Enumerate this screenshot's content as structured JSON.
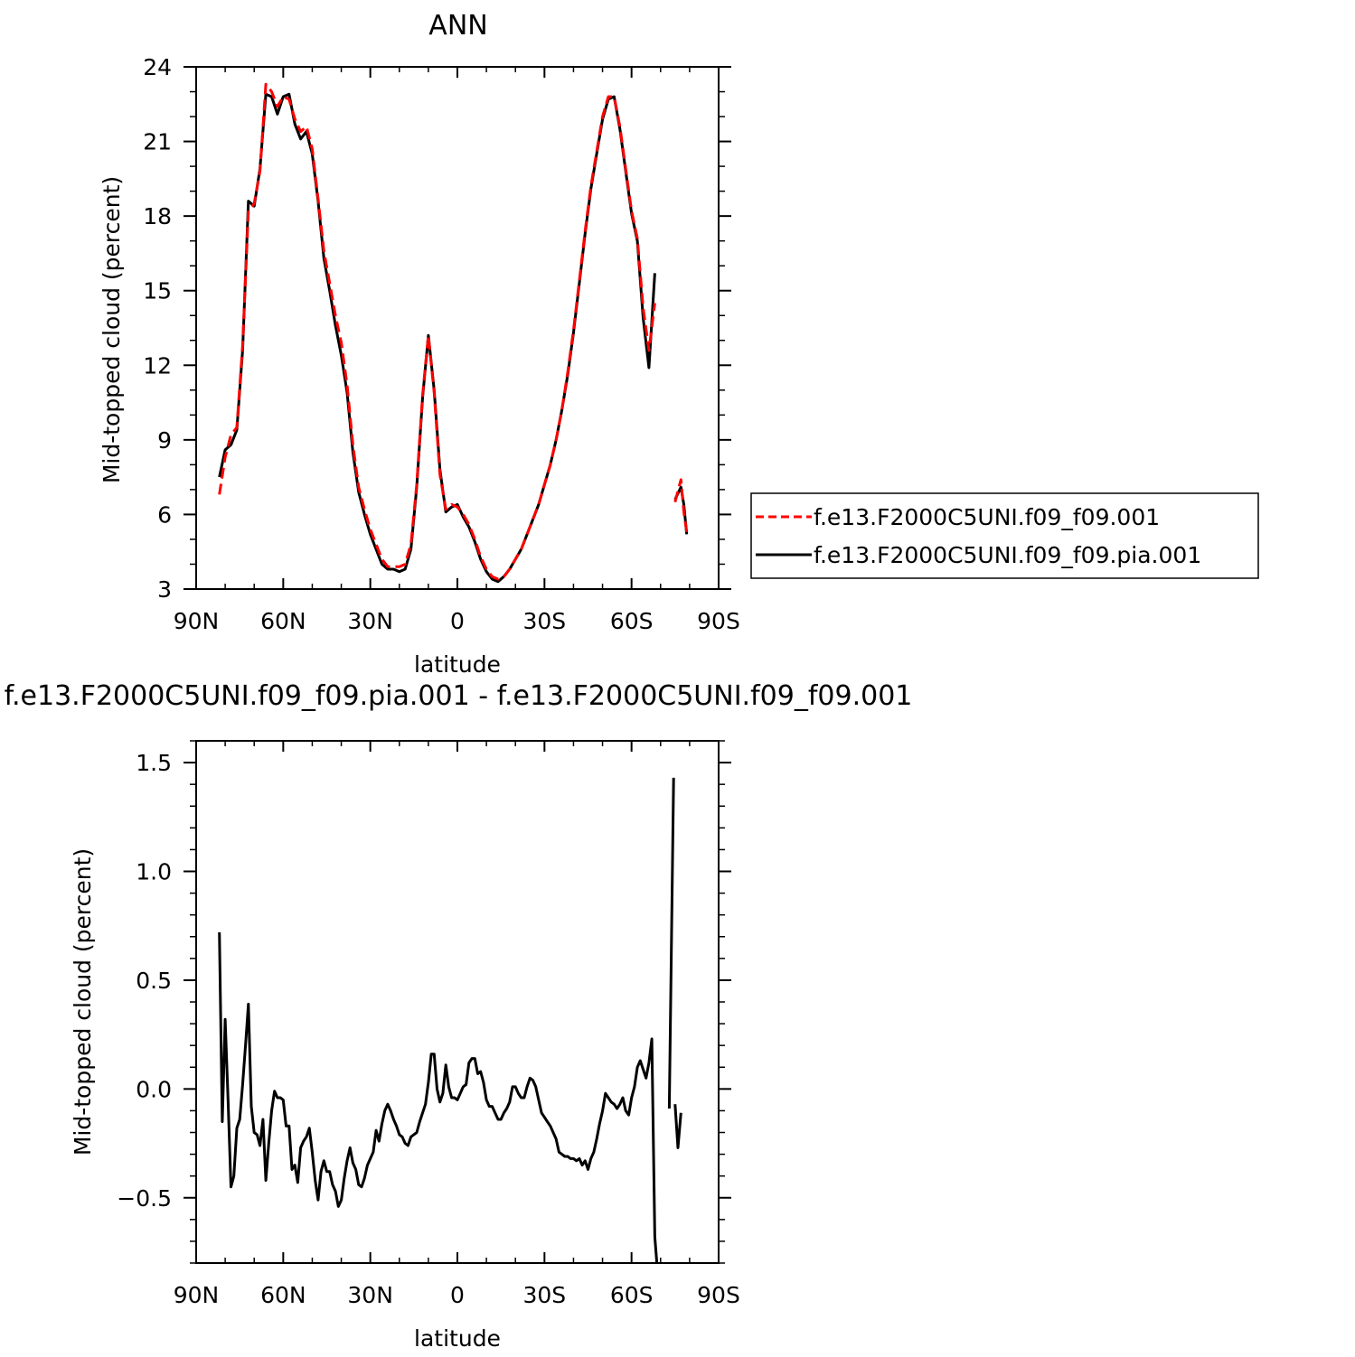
{
  "chart_data": [
    {
      "type": "line",
      "title": "ANN",
      "xlabel": "latitude",
      "ylabel": "Mid-topped cloud (percent)",
      "xlim": [
        90,
        -90
      ],
      "ylim": [
        3,
        24
      ],
      "x_ticks": [
        {
          "value": 90,
          "label": "90N"
        },
        {
          "value": 60,
          "label": "60N"
        },
        {
          "value": 30,
          "label": "30N"
        },
        {
          "value": 0,
          "label": "0"
        },
        {
          "value": -30,
          "label": "30S"
        },
        {
          "value": -60,
          "label": "60S"
        },
        {
          "value": -90,
          "label": "90S"
        }
      ],
      "y_ticks": [
        {
          "value": 3,
          "label": "3"
        },
        {
          "value": 6,
          "label": "6"
        },
        {
          "value": 9,
          "label": "9"
        },
        {
          "value": 12,
          "label": "12"
        },
        {
          "value": 15,
          "label": "15"
        },
        {
          "value": 18,
          "label": "18"
        },
        {
          "value": 21,
          "label": "21"
        },
        {
          "value": 24,
          "label": "24"
        }
      ],
      "legend_position": "right",
      "series": [
        {
          "name": "f.e13.F2000C5UNI.f09_f09.001",
          "color": "#ff0000",
          "dash": true,
          "x": [
            82,
            80,
            78,
            76,
            74,
            72,
            70,
            68,
            66,
            64,
            62,
            60,
            58,
            56,
            54,
            52,
            50,
            48,
            46,
            44,
            42,
            40,
            38,
            36,
            34,
            32,
            30,
            28,
            26,
            24,
            22,
            20,
            18,
            16,
            14,
            12,
            10,
            8,
            6,
            4,
            2,
            0,
            -2,
            -4,
            -6,
            -8,
            -10,
            -12,
            -14,
            -16,
            -18,
            -20,
            -22,
            -24,
            -26,
            -28,
            -30,
            -32,
            -34,
            -36,
            -38,
            -40,
            -42,
            -44,
            -46,
            -48,
            -50,
            -52,
            -54,
            -56,
            -58,
            -60,
            -62,
            -64,
            -66,
            -68,
            -70,
            -72
          ],
          "y": [
            6.8,
            8.3,
            9.2,
            9.5,
            12.8,
            18.2,
            18.5,
            19.8,
            23.3,
            23.0,
            22.4,
            22.8,
            22.7,
            21.9,
            21.4,
            21.6,
            20.7,
            18.7,
            16.6,
            15.3,
            14.0,
            12.9,
            11.2,
            8.8,
            7.1,
            6.2,
            5.4,
            4.8,
            4.2,
            3.9,
            3.9,
            3.9,
            4.0,
            4.8,
            7.2,
            10.8,
            13.2,
            10.9,
            7.6,
            6.2,
            6.4,
            6.3,
            6.0,
            5.6,
            5.0,
            4.3,
            3.8,
            3.5,
            3.4,
            3.5,
            3.8,
            4.2,
            4.6,
            5.2,
            5.8,
            6.4,
            7.2,
            8.0,
            9.0,
            10.2,
            11.7,
            13.4,
            15.4,
            17.4,
            19.2,
            20.6,
            22.0,
            22.8,
            22.8,
            21.6,
            19.9,
            18.2,
            17.1,
            14.3,
            12.6,
            14.5,
            null,
            null
          ],
          "segments_note": ""
        },
        {
          "name": "f.e13.F2000C5UNI.f09_f09.pia.001",
          "color": "#000000",
          "dash": false,
          "x": [
            82,
            80,
            78,
            76,
            74,
            72,
            70,
            68,
            66,
            64,
            62,
            60,
            58,
            56,
            54,
            52,
            50,
            48,
            46,
            44,
            42,
            40,
            38,
            36,
            34,
            32,
            30,
            28,
            26,
            24,
            22,
            20,
            18,
            16,
            14,
            12,
            10,
            8,
            6,
            4,
            2,
            0,
            -2,
            -4,
            -6,
            -8,
            -10,
            -12,
            -14,
            -16,
            -18,
            -20,
            -22,
            -24,
            -26,
            -28,
            -30,
            -32,
            -34,
            -36,
            -38,
            -40,
            -42,
            -44,
            -46,
            -48,
            -50,
            -52,
            -54,
            -56,
            -58,
            -60,
            -62,
            -64,
            -66,
            -68,
            -70,
            -72
          ],
          "y": [
            7.5,
            8.6,
            8.8,
            9.4,
            12.6,
            18.6,
            18.4,
            19.9,
            22.9,
            22.8,
            22.1,
            22.8,
            22.9,
            21.7,
            21.1,
            21.4,
            20.5,
            18.6,
            16.3,
            15.0,
            13.6,
            12.4,
            10.9,
            8.5,
            6.9,
            6.0,
            5.2,
            4.6,
            4.0,
            3.8,
            3.8,
            3.7,
            3.8,
            4.6,
            7.1,
            10.7,
            13.2,
            11.0,
            7.8,
            6.1,
            6.3,
            6.4,
            5.9,
            5.5,
            4.9,
            4.2,
            3.7,
            3.4,
            3.3,
            3.5,
            3.8,
            4.2,
            4.6,
            5.2,
            5.8,
            6.4,
            7.2,
            8.0,
            9.0,
            10.2,
            11.6,
            13.3,
            15.3,
            17.3,
            19.1,
            20.5,
            21.9,
            22.7,
            22.8,
            21.5,
            19.8,
            18.1,
            17.0,
            13.9,
            11.9,
            15.7,
            null,
            null
          ]
        }
      ],
      "extra_segments": [
        {
          "series": 0,
          "x": [
            -75,
            -77,
            -78,
            -79
          ],
          "y": [
            6.5,
            7.4,
            6.1,
            5.3
          ]
        },
        {
          "series": 1,
          "x": [
            -75,
            -77,
            -78,
            -79
          ],
          "y": [
            6.6,
            7.1,
            6.4,
            5.2
          ]
        }
      ]
    },
    {
      "type": "line",
      "title": "f.e13.F2000C5UNI.f09_f09.pia.001 - f.e13.F2000C5UNI.f09_f09.001",
      "xlabel": "latitude",
      "ylabel": "Mid-topped cloud (percent)",
      "xlim": [
        90,
        -90
      ],
      "ylim": [
        -0.8,
        1.6
      ],
      "x_ticks": [
        {
          "value": 90,
          "label": "90N"
        },
        {
          "value": 60,
          "label": "60N"
        },
        {
          "value": 30,
          "label": "30N"
        },
        {
          "value": 0,
          "label": "0"
        },
        {
          "value": -30,
          "label": "30S"
        },
        {
          "value": -60,
          "label": "60S"
        },
        {
          "value": -90,
          "label": "90S"
        }
      ],
      "y_ticks": [
        {
          "value": -0.5,
          "label": "−0.5"
        },
        {
          "value": 0.0,
          "label": "0.0"
        },
        {
          "value": 0.5,
          "label": "0.5"
        },
        {
          "value": 1.0,
          "label": "1.0"
        },
        {
          "value": 1.5,
          "label": "1.5"
        }
      ],
      "series": [
        {
          "name": "",
          "color": "#000000",
          "x": [
            82,
            81,
            80,
            79,
            78,
            77,
            76,
            75,
            74,
            73,
            72,
            71,
            70,
            69,
            68,
            67,
            66,
            65,
            64,
            63,
            62,
            61,
            60,
            59,
            58,
            57,
            56,
            55,
            54,
            53,
            52,
            51,
            50,
            49,
            48,
            47,
            46,
            45,
            44,
            43,
            42,
            41,
            40,
            39,
            38,
            37,
            36,
            35,
            34,
            33,
            32,
            31,
            30,
            29,
            28,
            27,
            26,
            25,
            24,
            23,
            22,
            21,
            20,
            19,
            18,
            17,
            16,
            15,
            14,
            13,
            12,
            11,
            10,
            9,
            8,
            7,
            6,
            5,
            4,
            3,
            2,
            1,
            0,
            -1,
            -2,
            -3,
            -4,
            -5,
            -6,
            -7,
            -8,
            -9,
            -10,
            -11,
            -12,
            -13,
            -14,
            -15,
            -16,
            -17,
            -18,
            -19,
            -20,
            -21,
            -22,
            -23,
            -24,
            -25,
            -26,
            -27,
            -28,
            -29,
            -30,
            -31,
            -32,
            -33,
            -34,
            -35,
            -36,
            -37,
            -38,
            -39,
            -40,
            -41,
            -42,
            -43,
            -44,
            -45,
            -46,
            -47,
            -48,
            -49,
            -50,
            -51,
            -52,
            -53,
            -54,
            -55,
            -56,
            -57,
            -58,
            -59,
            -60,
            -61,
            -62,
            -63,
            -64,
            -65,
            -66,
            -67,
            -68,
            -69,
            -70,
            -71,
            -72,
            -73,
            -74
          ],
          "y": [
            0.72,
            -0.15,
            0.32,
            -0.05,
            -0.45,
            -0.4,
            -0.18,
            -0.14,
            0.02,
            0.2,
            0.39,
            -0.08,
            -0.2,
            -0.21,
            -0.26,
            -0.14,
            -0.42,
            -0.25,
            -0.1,
            -0.01,
            -0.04,
            -0.04,
            -0.05,
            -0.17,
            -0.17,
            -0.37,
            -0.35,
            -0.43,
            -0.27,
            -0.24,
            -0.22,
            -0.18,
            -0.29,
            -0.42,
            -0.51,
            -0.38,
            -0.33,
            -0.38,
            -0.38,
            -0.44,
            -0.47,
            -0.54,
            -0.51,
            -0.41,
            -0.33,
            -0.27,
            -0.34,
            -0.37,
            -0.44,
            -0.45,
            -0.41,
            -0.35,
            -0.32,
            -0.29,
            -0.19,
            -0.24,
            -0.16,
            -0.1,
            -0.07,
            -0.1,
            -0.14,
            -0.17,
            -0.21,
            -0.22,
            -0.25,
            -0.26,
            -0.22,
            -0.21,
            -0.2,
            -0.15,
            -0.11,
            -0.07,
            0.03,
            0.16,
            0.16,
            0.0,
            -0.06,
            -0.02,
            0.11,
            0.01,
            -0.04,
            -0.04,
            -0.05,
            -0.02,
            0.01,
            0.02,
            0.12,
            0.14,
            0.14,
            0.07,
            0.08,
            0.03,
            -0.05,
            -0.08,
            -0.08,
            -0.11,
            -0.14,
            -0.14,
            -0.11,
            -0.09,
            -0.06,
            0.01,
            0.01,
            -0.02,
            -0.04,
            -0.04,
            0.01,
            0.05,
            0.04,
            0.01,
            -0.05,
            -0.11,
            -0.13,
            -0.15,
            -0.17,
            -0.2,
            -0.23,
            -0.29,
            -0.3,
            -0.31,
            -0.31,
            -0.32,
            -0.32,
            -0.33,
            -0.32,
            -0.35,
            -0.33,
            -0.37,
            -0.32,
            -0.29,
            -0.23,
            -0.16,
            -0.1,
            -0.02,
            -0.04,
            -0.06,
            -0.07,
            -0.09,
            -0.07,
            -0.04,
            -0.1,
            -0.12,
            -0.04,
            0.01,
            0.1,
            0.13,
            0.09,
            0.05,
            0.12,
            0.23,
            -0.68,
            -0.85,
            null,
            null,
            null,
            null,
            null
          ],
          "note": ""
        }
      ],
      "extra_segments": [
        {
          "series": 0,
          "x": [
            -73,
            -74.5
          ],
          "y": [
            -0.09,
            1.43
          ]
        },
        {
          "series": 0,
          "x": [
            -75,
            -76,
            -77
          ],
          "y": [
            -0.07,
            -0.27,
            -0.11
          ]
        }
      ]
    }
  ]
}
